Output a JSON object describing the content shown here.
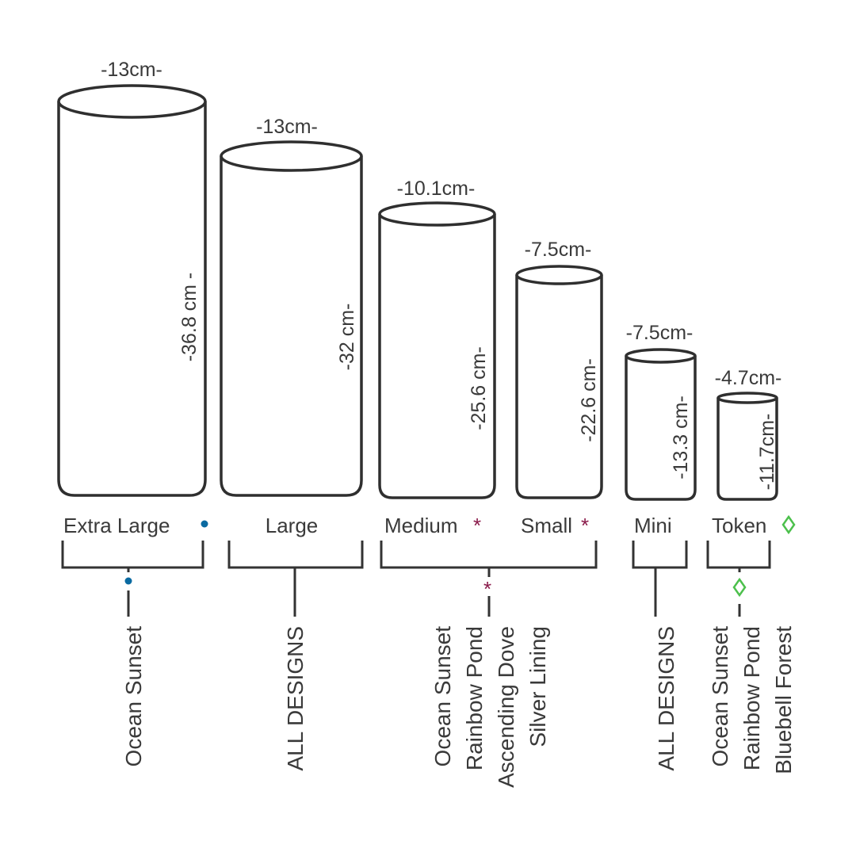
{
  "colors": {
    "dot": "#0a6aa1",
    "asterisk": "#8a1a4a",
    "diamond": "#4cc04c",
    "line": "#333333"
  },
  "cylinders": [
    {
      "size": "Extra Large",
      "width": "-13cm-",
      "height": "-36.8 cm -"
    },
    {
      "size": "Large",
      "width": "-13cm-",
      "height": "-32 cm-"
    },
    {
      "size": "Medium",
      "width": "-10.1cm-",
      "height": "-25.6 cm-"
    },
    {
      "size": "Small",
      "width": "-7.5cm-",
      "height": "-22.6 cm-"
    },
    {
      "size": "Mini",
      "width": "-7.5cm-",
      "height": "-13.3 cm-"
    },
    {
      "size": "Token",
      "width": "-4.7cm-",
      "height": "-11.7cm-"
    }
  ],
  "markers": {
    "asterisk": "*",
    "diamond": "◊"
  },
  "groups": [
    {
      "marker": "dot-icon",
      "designs": [
        "Ocean Sunset"
      ]
    },
    {
      "marker": "none",
      "designs": [
        "ALL DESIGNS"
      ]
    },
    {
      "marker": "asterisk-icon",
      "designs": [
        "Ocean Sunset",
        "Rainbow Pond",
        "Ascending Dove",
        "Silver Lining"
      ]
    },
    {
      "marker": "none",
      "designs": [
        "ALL DESIGNS"
      ]
    },
    {
      "marker": "diamond-icon",
      "designs": [
        "Ocean Sunset",
        "Rainbow Pond",
        "Bluebell Forest"
      ]
    }
  ]
}
